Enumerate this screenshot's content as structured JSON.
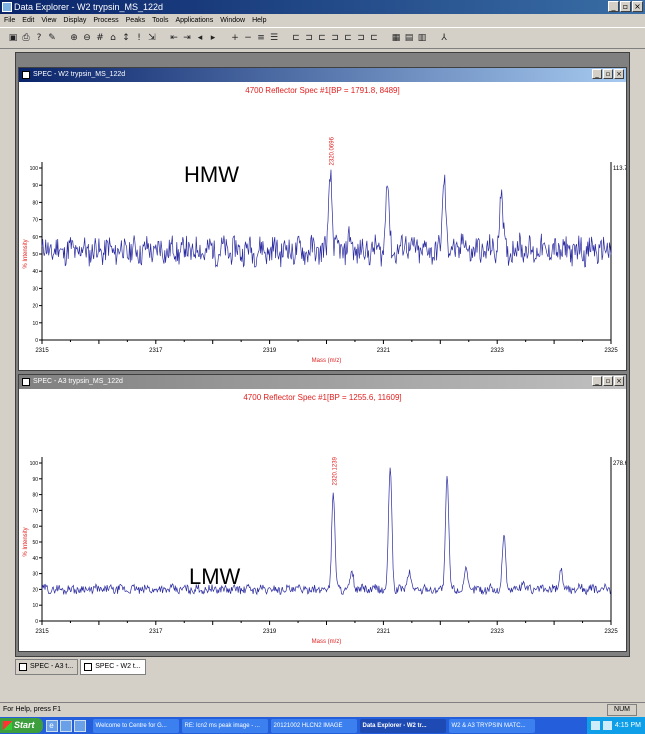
{
  "app": {
    "title": "Data Explorer - W2 trypsin_MS_122d",
    "menu": [
      "File",
      "Edit",
      "View",
      "Display",
      "Process",
      "Peaks",
      "Tools",
      "Applications",
      "Window",
      "Help"
    ]
  },
  "toolbar_icons": [
    "open-icon",
    "print-icon",
    "help-icon",
    "pointer-icon",
    "zoom-icon",
    "zoom-out-icon",
    "peak-label-icon",
    "baseline-icon",
    "arrow-icon",
    "marker-icon",
    "cursor-icon",
    "expand-left-icon",
    "expand-right-icon",
    "shift-left-icon",
    "shift-right-icon",
    "add-icon",
    "subtract-icon",
    "stack-icon",
    "overlay-icon",
    "spectrum-1-icon",
    "spectrum-2-icon",
    "spectrum-3-icon",
    "spectrum-4-icon",
    "spectrum-5-icon",
    "spectrum-6-icon",
    "spectrum-7-icon",
    "tile-icon",
    "cascade-icon",
    "split-icon",
    "person-icon"
  ],
  "windows": [
    {
      "title": "SPEC - W2 trypsin_MS_122d",
      "spec_title": "4700 Reflector Spec #1[BP = 1791.8, 8489]",
      "annotation": "HMW",
      "peak_label": "2320.0696",
      "max_intensity": "113.7",
      "ylabel": "% Intensity",
      "xlabel": "Mass (m/z)",
      "chart_data": {
        "type": "line",
        "x_ticks": [
          "2315",
          "2317",
          "2319",
          "2321",
          "2323",
          "2325"
        ],
        "y_ticks": [
          "0",
          "10",
          "20",
          "30",
          "40",
          "50",
          "60",
          "70",
          "80",
          "90",
          "100"
        ],
        "xlim": [
          2315,
          2325
        ],
        "ylim": [
          0,
          100
        ],
        "baseline": 52,
        "noise": 7,
        "peaks": [
          {
            "x": 2320.07,
            "y": 98
          },
          {
            "x": 2321.07,
            "y": 94
          },
          {
            "x": 2322.07,
            "y": 96
          },
          {
            "x": 2323.07,
            "y": 88
          }
        ]
      }
    },
    {
      "title": "SPEC - A3 trypsin_MS_122d",
      "spec_title": "4700 Reflector Spec #1[BP = 1255.6, 11609]",
      "annotation": "LMW",
      "peak_label": "2320.1239",
      "max_intensity": "278.6",
      "ylabel": "% Intensity",
      "xlabel": "Mass (m/z)",
      "chart_data": {
        "type": "line",
        "x_ticks": [
          "2315",
          "2317",
          "2319",
          "2321",
          "2323",
          "2325"
        ],
        "y_ticks": [
          "0",
          "10",
          "20",
          "30",
          "40",
          "50",
          "60",
          "70",
          "80",
          "90",
          "100"
        ],
        "xlim": [
          2315,
          2325
        ],
        "ylim": [
          0,
          100
        ],
        "baseline": 20,
        "noise": 2.5,
        "peaks": [
          {
            "x": 2320.12,
            "y": 82
          },
          {
            "x": 2321.12,
            "y": 98
          },
          {
            "x": 2322.12,
            "y": 93
          },
          {
            "x": 2323.12,
            "y": 55
          },
          {
            "x": 2324.12,
            "y": 34
          }
        ]
      }
    }
  ],
  "mdi_tabs": [
    "SPEC - A3 t...",
    "SPEC - W2 t..."
  ],
  "status": {
    "message": "For Help, press F1",
    "num": "NUM"
  },
  "taskbar": {
    "start": "Start",
    "tasks": [
      "Welcome to Centre for G...",
      "RE: lcn2 ms peak image - ...",
      "20121002 HLCN2 IMAGE",
      "Data Explorer - W2 tr...",
      "W2 & A3 TRYPSIN MATC..."
    ],
    "clock": "4:15 PM"
  },
  "colors": {
    "trace": "#2a2aa0",
    "title_red": "#e02020",
    "axis": "#000000"
  }
}
